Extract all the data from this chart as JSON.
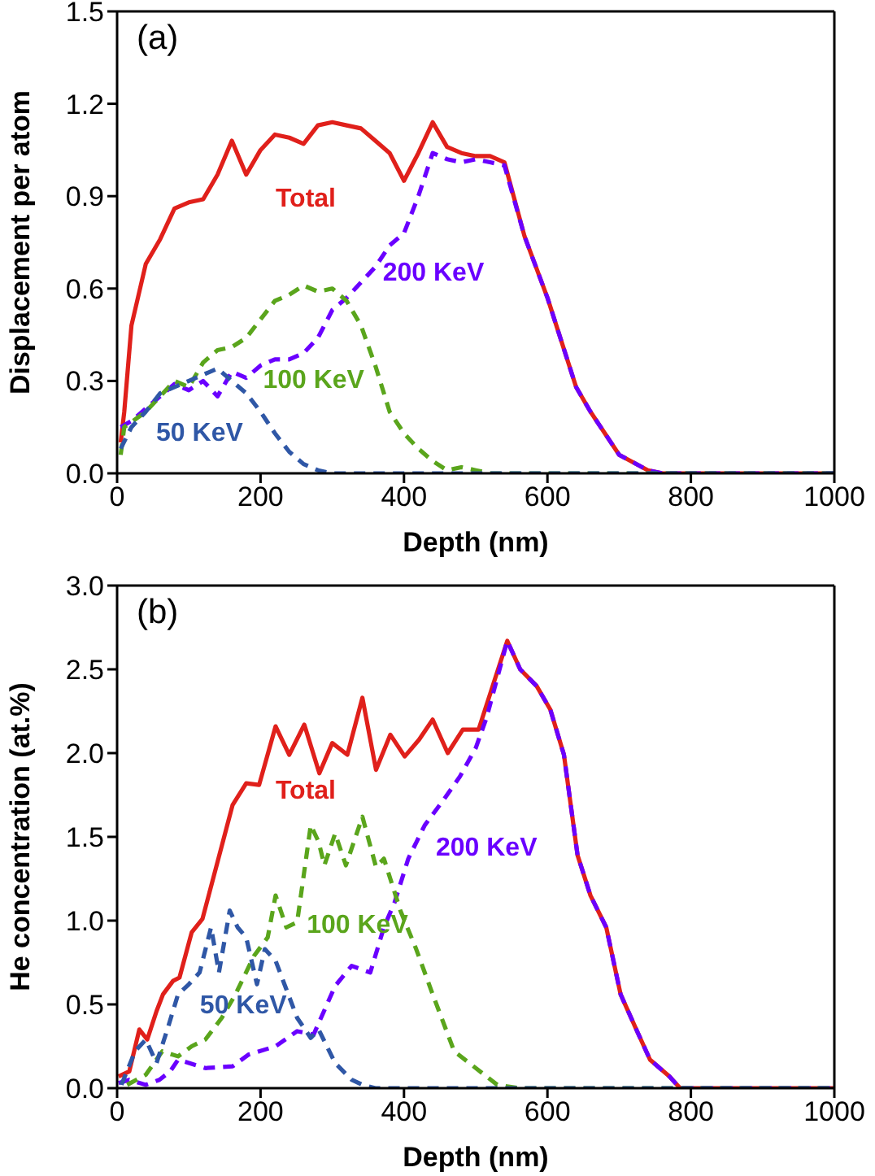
{
  "chart_data": [
    {
      "type": "line",
      "title": "(a)",
      "xlabel": "Depth (nm)",
      "ylabel": "Displacement per atom",
      "xlim": [
        0,
        1000
      ],
      "xticks": [
        0,
        200,
        400,
        600,
        800,
        1000
      ],
      "ylim": [
        0,
        1.5
      ],
      "yticks": [
        {
          "value": 0,
          "label": "0.0"
        },
        {
          "value": 0.3,
          "label": "0.3"
        },
        {
          "value": 0.6,
          "label": "0.6"
        },
        {
          "value": 0.9,
          "label": "0.9"
        },
        {
          "value": 1.2,
          "label": "1.2"
        },
        {
          "value": 1.5,
          "label": "1.5"
        }
      ],
      "grid": false,
      "legend": false,
      "marker": "none",
      "series": [
        {
          "name": "Total",
          "color": "#e0201b",
          "line_style": "solid",
          "x": [
            5,
            10,
            20,
            40,
            60,
            80,
            100,
            120,
            140,
            160,
            180,
            200,
            220,
            240,
            260,
            280,
            300,
            320,
            340,
            360,
            380,
            400,
            420,
            440,
            460,
            480,
            500,
            520,
            540,
            568,
            600,
            640,
            660,
            700,
            740,
            760,
            1000
          ],
          "values": [
            0.1,
            0.2,
            0.48,
            0.68,
            0.76,
            0.86,
            0.88,
            0.89,
            0.97,
            1.08,
            0.97,
            1.05,
            1.1,
            1.09,
            1.07,
            1.13,
            1.14,
            1.13,
            1.12,
            1.08,
            1.04,
            0.95,
            1.04,
            1.14,
            1.06,
            1.04,
            1.03,
            1.03,
            1.01,
            0.77,
            0.57,
            0.28,
            0.2,
            0.06,
            0.01,
            0,
            0
          ]
        },
        {
          "name": "200 KeV",
          "color": "#6a00ff",
          "line_style": "dashed",
          "x": [
            5,
            20,
            40,
            60,
            80,
            100,
            120,
            140,
            160,
            180,
            200,
            220,
            240,
            260,
            280,
            300,
            320,
            340,
            360,
            380,
            400,
            420,
            440,
            460,
            480,
            500,
            520,
            540,
            568,
            600,
            640,
            660,
            700,
            740,
            760,
            1000
          ],
          "values": [
            0.15,
            0.17,
            0.21,
            0.25,
            0.29,
            0.27,
            0.3,
            0.25,
            0.33,
            0.31,
            0.35,
            0.37,
            0.37,
            0.39,
            0.44,
            0.53,
            0.57,
            0.62,
            0.67,
            0.74,
            0.78,
            0.9,
            1.04,
            1.02,
            1.01,
            1.02,
            1.01,
            1.0,
            0.77,
            0.57,
            0.28,
            0.2,
            0.06,
            0.01,
            0,
            0
          ]
        },
        {
          "name": "100 KeV",
          "color": "#5aa51c",
          "line_style": "dashed",
          "x": [
            5,
            10,
            40,
            60,
            80,
            100,
            120,
            140,
            160,
            180,
            200,
            220,
            240,
            260,
            280,
            300,
            320,
            340,
            360,
            380,
            400,
            420,
            440,
            460,
            480,
            500,
            520,
            1000
          ],
          "values": [
            0.06,
            0.15,
            0.2,
            0.25,
            0.3,
            0.28,
            0.36,
            0.4,
            0.41,
            0.44,
            0.5,
            0.56,
            0.58,
            0.61,
            0.59,
            0.6,
            0.56,
            0.48,
            0.35,
            0.2,
            0.13,
            0.08,
            0.04,
            0.01,
            0.02,
            0.01,
            0,
            0
          ]
        },
        {
          "name": "50 KeV",
          "color": "#2f57a6",
          "line_style": "dashed",
          "x": [
            5,
            20,
            40,
            60,
            80,
            100,
            120,
            140,
            160,
            180,
            200,
            220,
            240,
            260,
            280,
            300,
            1000
          ],
          "values": [
            0.08,
            0.15,
            0.2,
            0.26,
            0.28,
            0.3,
            0.32,
            0.34,
            0.3,
            0.26,
            0.2,
            0.13,
            0.07,
            0.03,
            0.01,
            0,
            0
          ]
        }
      ]
    },
    {
      "type": "line",
      "title": "(b)",
      "xlabel": "Depth (nm)",
      "ylabel": "He concentration (at.%)",
      "xlim": [
        0,
        1000
      ],
      "xticks": [
        0,
        200,
        400,
        600,
        800,
        1000
      ],
      "ylim": [
        0,
        3.0
      ],
      "yticks": [
        {
          "value": 0,
          "label": "0.0"
        },
        {
          "value": 0.5,
          "label": "0.5"
        },
        {
          "value": 1,
          "label": "1.0"
        },
        {
          "value": 1.5,
          "label": "1.5"
        },
        {
          "value": 2,
          "label": "2.0"
        },
        {
          "value": 2.5,
          "label": "2.5"
        },
        {
          "value": 3,
          "label": "3.0"
        }
      ],
      "grid": false,
      "legend": false,
      "marker": "none",
      "series": [
        {
          "name": "Total",
          "color": "#e0201b",
          "line_style": "solid",
          "x": [
            2,
            17,
            31,
            42,
            55,
            64,
            78,
            87,
            104,
            119,
            161,
            180,
            198,
            221,
            240,
            261,
            282,
            300,
            321,
            342,
            361,
            381,
            401,
            421,
            440,
            461,
            482,
            504,
            544,
            562,
            585,
            604,
            623,
            642,
            660,
            682,
            702,
            725,
            743,
            770,
            785,
            1000
          ],
          "values": [
            0.07,
            0.1,
            0.35,
            0.29,
            0.46,
            0.56,
            0.64,
            0.66,
            0.93,
            1.01,
            1.69,
            1.82,
            1.81,
            2.16,
            1.99,
            2.17,
            1.88,
            2.06,
            1.99,
            2.33,
            1.9,
            2.11,
            1.98,
            2.08,
            2.2,
            2.0,
            2.14,
            2.14,
            2.67,
            2.5,
            2.4,
            2.26,
            1.99,
            1.39,
            1.15,
            0.96,
            0.56,
            0.34,
            0.17,
            0.07,
            0,
            0
          ]
        },
        {
          "name": "200 KeV",
          "color": "#6a00ff",
          "line_style": "dashed",
          "x": [
            2,
            17,
            40,
            59,
            74,
            85,
            123,
            161,
            183,
            221,
            251,
            274,
            304,
            327,
            353,
            372,
            387,
            406,
            429,
            455,
            478,
            500,
            515,
            544,
            562,
            585,
            604,
            623,
            642,
            660,
            682,
            702,
            725,
            743,
            770,
            785,
            1000
          ],
          "values": [
            0.03,
            0.05,
            0.02,
            0.05,
            0.1,
            0.17,
            0.12,
            0.13,
            0.2,
            0.25,
            0.34,
            0.32,
            0.61,
            0.73,
            0.69,
            0.96,
            1.11,
            1.37,
            1.57,
            1.72,
            1.86,
            2.03,
            2.21,
            2.67,
            2.5,
            2.4,
            2.26,
            1.99,
            1.39,
            1.15,
            0.96,
            0.56,
            0.34,
            0.17,
            0.07,
            0,
            0
          ]
        },
        {
          "name": "100 KeV",
          "color": "#5aa51c",
          "line_style": "dashed",
          "x": [
            14,
            40,
            63,
            85,
            104,
            123,
            146,
            165,
            191,
            210,
            221,
            236,
            251,
            270,
            281,
            289,
            304,
            319,
            342,
            361,
            372,
            395,
            417,
            440,
            470,
            500,
            530,
            560,
            1000
          ],
          "values": [
            0.02,
            0.08,
            0.22,
            0.19,
            0.25,
            0.29,
            0.42,
            0.56,
            0.79,
            0.9,
            1.15,
            0.96,
            0.99,
            1.57,
            1.47,
            1.33,
            1.52,
            1.33,
            1.62,
            1.32,
            1.37,
            1.06,
            0.83,
            0.56,
            0.22,
            0.12,
            0.02,
            0,
            0
          ]
        },
        {
          "name": "50 KeV",
          "color": "#2f57a6",
          "line_style": "dashed",
          "x": [
            6,
            25,
            40,
            55,
            70,
            85,
            100,
            115,
            131,
            142,
            157,
            168,
            180,
            195,
            206,
            221,
            236,
            251,
            270,
            281,
            304,
            327,
            342,
            360,
            1000
          ],
          "values": [
            0.02,
            0.22,
            0.29,
            0.15,
            0.35,
            0.56,
            0.62,
            0.69,
            0.96,
            0.69,
            1.06,
            0.96,
            0.9,
            0.62,
            0.83,
            0.76,
            0.59,
            0.42,
            0.3,
            0.35,
            0.15,
            0.05,
            0.02,
            0,
            0
          ]
        }
      ]
    }
  ]
}
